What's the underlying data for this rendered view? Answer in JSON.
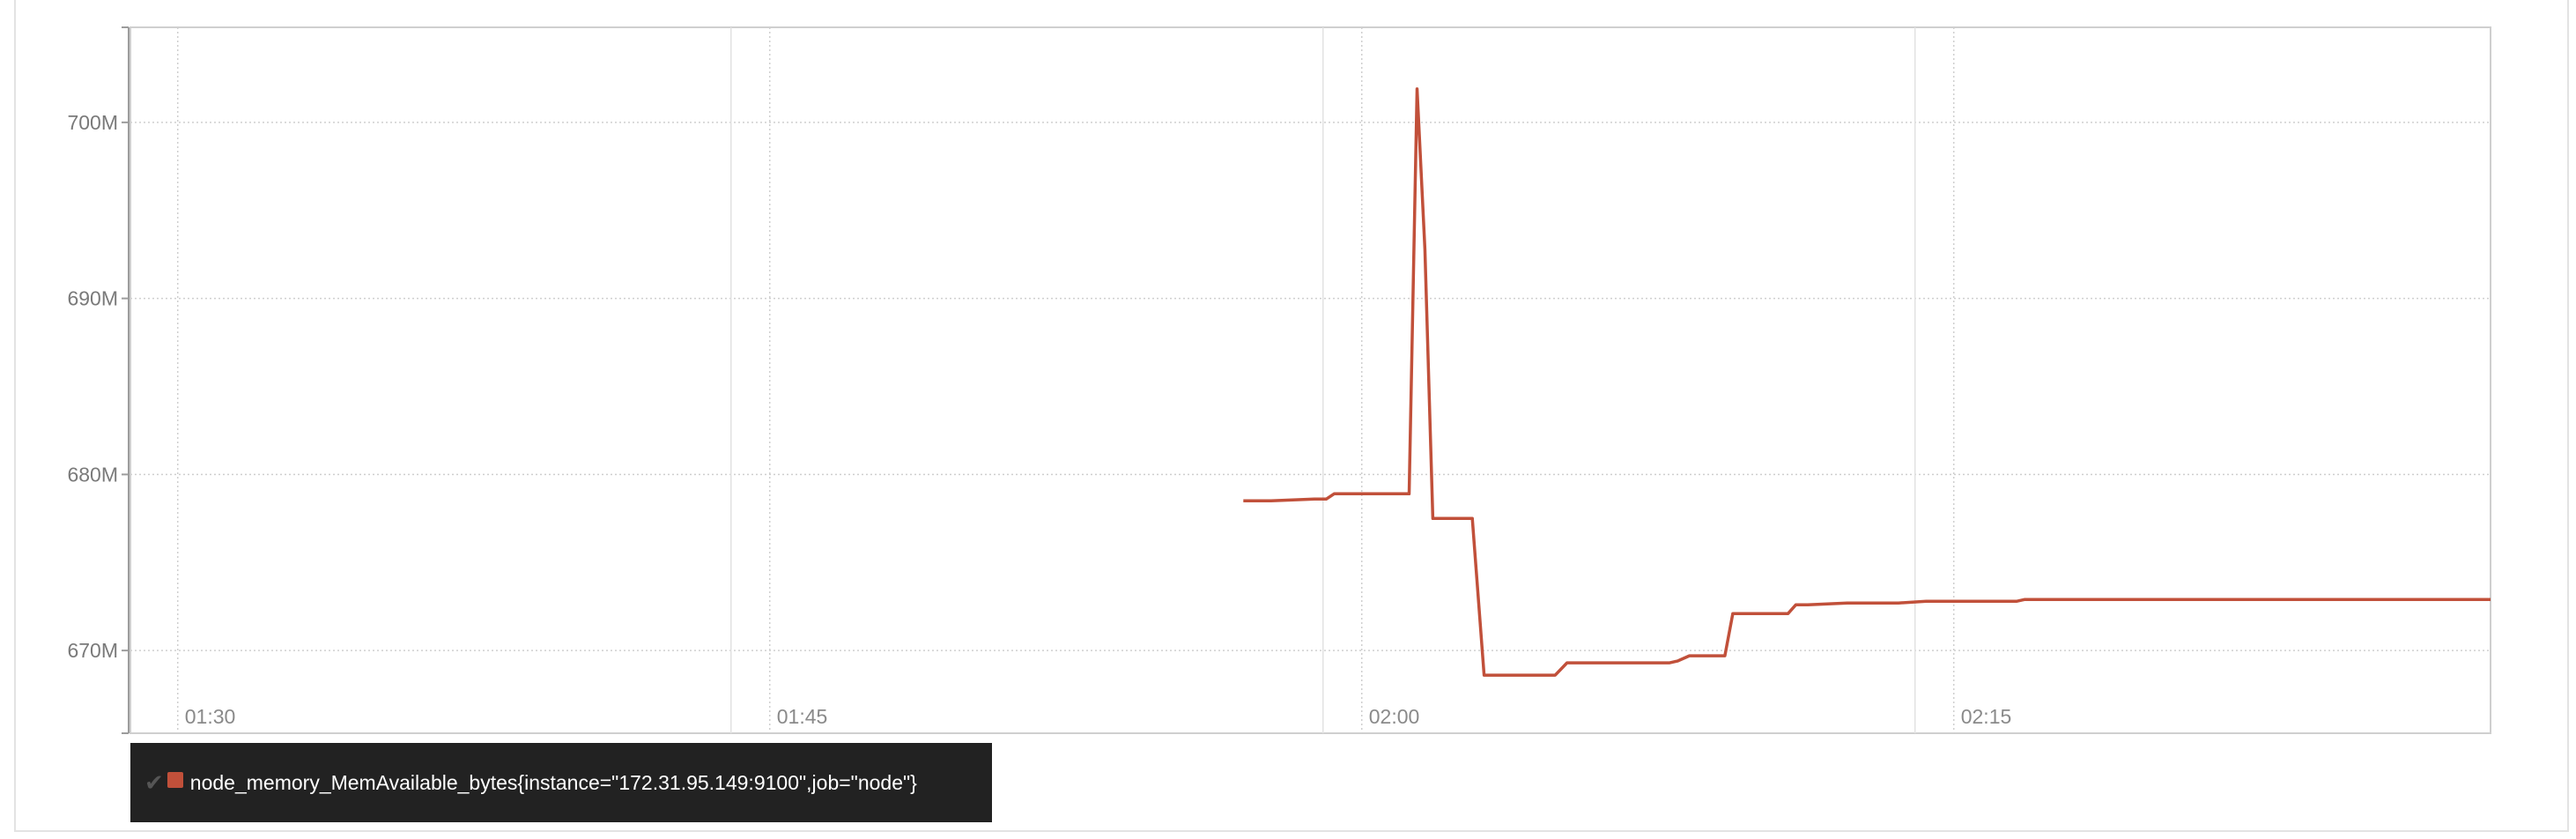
{
  "chart_data": {
    "type": "line",
    "x_axis": {
      "unit": "time",
      "ticks": [
        "01:30",
        "01:45",
        "02:00",
        "02:15"
      ],
      "tick_minutes": [
        90,
        105,
        120,
        135
      ],
      "range_minutes": [
        88.8,
        148.6
      ]
    },
    "y_axis": {
      "ticks": [
        "670M",
        "680M",
        "690M",
        "700M"
      ],
      "tick_values": [
        670000000,
        680000000,
        690000000,
        700000000
      ],
      "range": [
        665300000,
        705400000
      ]
    },
    "grid": true,
    "legend_position": "bottom-left",
    "series": [
      {
        "name": "node_memory_MemAvailable_bytes{instance=\"172.31.95.149:9100\",job=\"node\"}",
        "color": "#c1503a",
        "x_minutes": [
          117.0,
          117.7,
          118.8,
          119.1,
          119.3,
          120.4,
          121.2,
          121.4,
          121.6,
          121.8,
          122.1,
          122.8,
          123.1,
          124.9,
          125.2,
          126.6,
          127.8,
          128.0,
          128.3,
          129.2,
          129.4,
          130.8,
          131.0,
          131.3,
          132.3,
          133.6,
          134.3,
          136.6,
          136.8,
          138.8,
          141.6,
          148.6
        ],
        "values": [
          678500000,
          678500000,
          678600000,
          678600000,
          678900000,
          678900000,
          678900000,
          701900000,
          692800000,
          677500000,
          677500000,
          677500000,
          668600000,
          668600000,
          669300000,
          669300000,
          669300000,
          669400000,
          669700000,
          669700000,
          672100000,
          672100000,
          672600000,
          672600000,
          672700000,
          672700000,
          672800000,
          672800000,
          672900000,
          672900000,
          672900000,
          672900000
        ]
      }
    ]
  },
  "legend": {
    "check_icon": "✔",
    "entries": [
      {
        "label": "node_memory_MemAvailable_bytes{instance=\"172.31.95.149:9100\",job=\"node\"}",
        "color": "#c1503a"
      }
    ]
  },
  "colors": {
    "series": "#c1503a",
    "grid": "#cfcfcf",
    "axis": "#9c9c9c",
    "legend_bg": "#222222"
  }
}
